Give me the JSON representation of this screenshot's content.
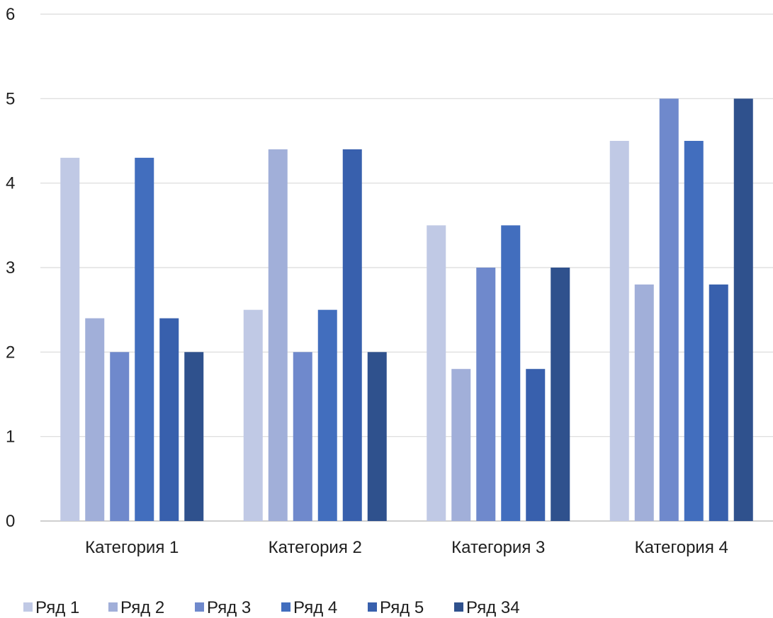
{
  "chart_data": {
    "type": "bar",
    "title": "",
    "xlabel": "",
    "ylabel": "",
    "categories": [
      "Категория 1",
      "Категория 2",
      "Категория 3",
      "Категория 4"
    ],
    "ylim": [
      0,
      6
    ],
    "yticks": [
      "0",
      "1",
      "2",
      "3",
      "4",
      "5",
      "6"
    ],
    "grid": true,
    "legend_position": "bottom",
    "series": [
      {
        "name": "Ряд 1",
        "color": "#c0c9e5",
        "values": [
          4.3,
          2.5,
          3.5,
          4.5
        ]
      },
      {
        "name": "Ряд 2",
        "color": "#a1afd9",
        "values": [
          2.4,
          4.4,
          1.8,
          2.8
        ]
      },
      {
        "name": "Ряд 3",
        "color": "#6f89cc",
        "values": [
          2.0,
          2.0,
          3.0,
          5.0
        ]
      },
      {
        "name": "Ряд 4",
        "color": "#426ebe",
        "values": [
          4.3,
          2.5,
          3.5,
          4.5
        ]
      },
      {
        "name": "Ряд 5",
        "color": "#3860ad",
        "values": [
          2.4,
          4.4,
          1.8,
          2.8
        ]
      },
      {
        "name": "Ряд 34",
        "color": "#2f518d",
        "values": [
          2.0,
          2.0,
          3.0,
          5.0
        ]
      }
    ]
  }
}
